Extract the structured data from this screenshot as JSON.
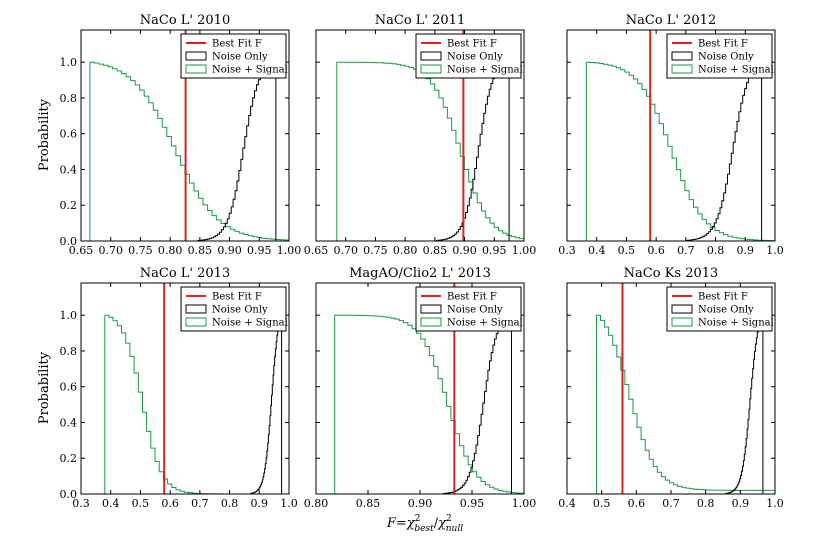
{
  "chart_data": {
    "type": "step",
    "ylabel": "Probability",
    "xlabel_parts": {
      "F": "F",
      "eq": "=",
      "chi": "χ",
      "sup": "2",
      "best": "best",
      "slash": "/",
      "null": "null"
    },
    "legend": {
      "best_fit": "Best Fit F",
      "noise_only": "Noise Only",
      "noise_signal": "Noise + Signal"
    },
    "colors": {
      "best_fit": "#dd2222",
      "noise_only": "#000000",
      "noise_signal": "#1a9a4a"
    },
    "panels": [
      {
        "title": "NaCo L' 2010",
        "xlim": [
          0.65,
          1.0
        ],
        "ylim": [
          0,
          1.18
        ],
        "xticks": [
          0.65,
          0.7,
          0.75,
          0.8,
          0.85,
          0.9,
          0.95,
          1.0
        ],
        "xticklabels": [
          "0.65",
          "0.70",
          "0.75",
          "0.80",
          "0.85",
          "0.90",
          "0.95",
          "1.00"
        ],
        "yticks": [
          0.0,
          0.2,
          0.4,
          0.6,
          0.8,
          1.0
        ],
        "yticklabels": [
          "0.0",
          "0.2",
          "0.4",
          "0.6",
          "0.8",
          "1.0"
        ],
        "best_fit": 0.826,
        "noise_signal": {
          "start": 0.665,
          "mid": 0.805,
          "width": 0.036,
          "n": 44
        },
        "noise_only": {
          "end": 0.978,
          "mid": 0.925,
          "width": 0.013,
          "n": 40
        }
      },
      {
        "title": "NaCo L' 2011",
        "xlim": [
          0.65,
          1.0
        ],
        "ylim": [
          0,
          1.18
        ],
        "xticks": [
          0.65,
          0.7,
          0.75,
          0.8,
          0.85,
          0.9,
          0.95,
          1.0
        ],
        "xticklabels": [
          "0.65",
          "0.70",
          "0.75",
          "0.80",
          "0.85",
          "0.90",
          "0.95",
          "1.00"
        ],
        "yticks": [
          0.0,
          0.2,
          0.4,
          0.6,
          0.8,
          1.0
        ],
        "yticklabels": [
          "0.0",
          "0.2",
          "0.4",
          "0.6",
          "0.8",
          "1.0"
        ],
        "best_fit": 0.898,
        "noise_signal": {
          "start": 0.685,
          "mid": 0.89,
          "width": 0.024,
          "n": 44
        },
        "noise_only": {
          "end": 0.975,
          "mid": 0.925,
          "width": 0.012,
          "n": 40
        }
      },
      {
        "title": "NaCo L' 2012",
        "xlim": [
          0.3,
          1.0
        ],
        "ylim": [
          0,
          1.18
        ],
        "xticks": [
          0.3,
          0.4,
          0.5,
          0.6,
          0.7,
          0.8,
          0.9,
          1.0
        ],
        "xticklabels": [
          "0.3",
          "0.4",
          "0.5",
          "0.6",
          "0.7",
          "0.8",
          "0.9",
          "1.0"
        ],
        "yticks": [
          0.0,
          0.2,
          0.4,
          0.6,
          0.8,
          1.0
        ],
        "yticklabels": [
          "0.0",
          "0.2",
          "0.4",
          "0.6",
          "0.8",
          "1.0"
        ],
        "best_fit": 0.58,
        "noise_signal": {
          "start": 0.365,
          "mid": 0.645,
          "width": 0.055,
          "n": 44
        },
        "noise_only": {
          "end": 0.955,
          "mid": 0.862,
          "width": 0.027,
          "n": 40
        }
      },
      {
        "title": "NaCo L' 2013",
        "xlim": [
          0.3,
          1.0
        ],
        "ylim": [
          0,
          1.18
        ],
        "xticks": [
          0.3,
          0.4,
          0.5,
          0.6,
          0.7,
          0.8,
          0.9,
          1.0
        ],
        "xticklabels": [
          "0.3",
          "0.4",
          "0.5",
          "0.6",
          "0.7",
          "0.8",
          "0.9",
          "1.0"
        ],
        "yticks": [
          0.0,
          0.2,
          0.4,
          0.6,
          0.8,
          1.0
        ],
        "yticklabels": [
          "0.0",
          "0.2",
          "0.4",
          "0.6",
          "0.8",
          "1.0"
        ],
        "best_fit": 0.58,
        "noise_signal": {
          "start": 0.38,
          "mid": 0.5,
          "width": 0.032,
          "n": 44
        },
        "noise_only": {
          "end": 0.975,
          "mid": 0.943,
          "width": 0.012,
          "n": 40
        }
      },
      {
        "title": "MagAO/Clio2 L' 2013",
        "xlim": [
          0.8,
          1.0
        ],
        "ylim": [
          0,
          1.18
        ],
        "xticks": [
          0.8,
          0.85,
          0.9,
          0.95,
          1.0
        ],
        "xticklabels": [
          "0.80",
          "0.85",
          "0.90",
          "0.95",
          "1.00"
        ],
        "yticks": [
          0.0,
          0.2,
          0.4,
          0.6,
          0.8,
          1.0
        ],
        "yticklabels": [
          "0.0",
          "0.2",
          "0.4",
          "0.6",
          "0.8",
          "1.0"
        ],
        "best_fit": 0.933,
        "noise_signal": {
          "start": 0.818,
          "mid": 0.925,
          "width": 0.013,
          "n": 44
        },
        "noise_only": {
          "end": 0.988,
          "mid": 0.962,
          "width": 0.0065,
          "n": 40
        }
      },
      {
        "title": "NaCo Ks 2013",
        "xlim": [
          0.4,
          1.0
        ],
        "ylim": [
          0,
          1.18
        ],
        "xticks": [
          0.4,
          0.5,
          0.6,
          0.7,
          0.8,
          0.9,
          1.0
        ],
        "xticklabels": [
          "0.4",
          "0.5",
          "0.6",
          "0.7",
          "0.8",
          "0.9",
          "1.0"
        ],
        "yticks": [
          0.0,
          0.2,
          0.4,
          0.6,
          0.8,
          1.0
        ],
        "yticklabels": [
          "0.0",
          "0.2",
          "0.4",
          "0.6",
          "0.8",
          "1.0"
        ],
        "best_fit": 0.56,
        "noise_signal": {
          "start": 0.485,
          "mid": 0.575,
          "width": 0.038,
          "n": 44,
          "floor": 0.02
        },
        "noise_only": {
          "end": 0.965,
          "mid": 0.93,
          "width": 0.012,
          "n": 40
        }
      }
    ]
  }
}
